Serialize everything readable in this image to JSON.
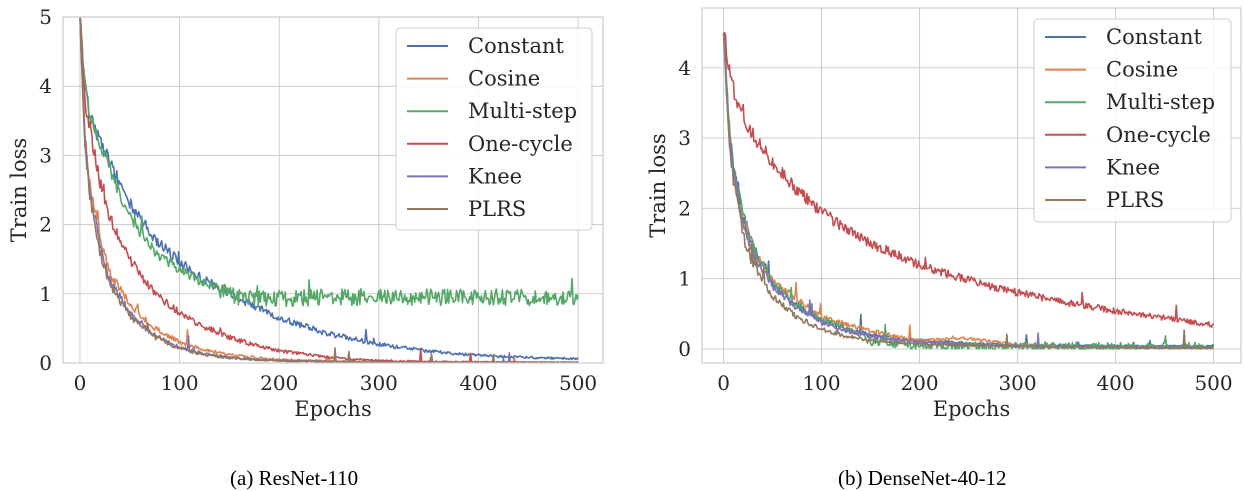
{
  "colors": {
    "Constant": "#4c72b0",
    "Cosine": "#dd8452",
    "Multi-step": "#55a868",
    "One-cycle": "#c44e52",
    "Knee": "#8172b3",
    "PLRS": "#937860",
    "grid": "#cccccc",
    "frame": "#cccccc"
  },
  "chart_data": [
    {
      "type": "line",
      "caption": "(a) ResNet-110",
      "xlabel": "Epochs",
      "ylabel": "Train loss",
      "xlim": [
        -17,
        525
      ],
      "ylim": [
        0,
        5
      ],
      "xticks": [
        0,
        100,
        200,
        300,
        400,
        500
      ],
      "yticks": [
        0,
        1,
        2,
        3,
        4,
        5
      ],
      "grid": true,
      "legend": "top-right",
      "series": [
        {
          "name": "Constant",
          "x": [
            0,
            5,
            10,
            20,
            30,
            50,
            75,
            100,
            125,
            150,
            175,
            200,
            250,
            300,
            350,
            400,
            450,
            500
          ],
          "y": [
            5.0,
            4.0,
            3.6,
            3.2,
            2.9,
            2.3,
            1.8,
            1.45,
            1.2,
            1.0,
            0.82,
            0.65,
            0.42,
            0.27,
            0.17,
            0.11,
            0.08,
            0.06
          ]
        },
        {
          "name": "Cosine",
          "x": [
            0,
            5,
            10,
            20,
            30,
            50,
            75,
            100,
            125,
            150,
            175,
            200,
            250,
            300,
            350,
            400,
            450,
            500
          ],
          "y": [
            5.0,
            3.3,
            2.6,
            1.8,
            1.3,
            0.85,
            0.5,
            0.3,
            0.19,
            0.12,
            0.08,
            0.05,
            0.03,
            0.015,
            0.01,
            0.008,
            0.007,
            0.006
          ]
        },
        {
          "name": "Multi-step",
          "x": [
            0,
            5,
            10,
            20,
            30,
            50,
            75,
            100,
            125,
            150,
            160,
            200,
            250,
            300,
            350,
            400,
            450,
            500
          ],
          "y": [
            5.0,
            4.0,
            3.6,
            3.2,
            2.8,
            2.1,
            1.6,
            1.35,
            1.15,
            1.0,
            0.95,
            0.93,
            0.95,
            0.95,
            0.95,
            0.95,
            0.95,
            0.95
          ]
        },
        {
          "name": "One-cycle",
          "x": [
            0,
            5,
            10,
            20,
            30,
            50,
            75,
            100,
            125,
            150,
            175,
            200,
            250,
            300,
            350,
            400,
            450,
            500
          ],
          "y": [
            5.0,
            3.8,
            3.4,
            2.6,
            2.1,
            1.5,
            1.0,
            0.72,
            0.52,
            0.37,
            0.26,
            0.18,
            0.08,
            0.035,
            0.02,
            0.012,
            0.008,
            0.006
          ]
        },
        {
          "name": "Knee",
          "x": [
            0,
            5,
            10,
            20,
            30,
            50,
            75,
            100,
            125,
            150,
            175,
            200,
            250,
            300,
            350,
            400,
            450,
            500
          ],
          "y": [
            5.0,
            3.3,
            2.5,
            1.7,
            1.2,
            0.72,
            0.4,
            0.22,
            0.13,
            0.08,
            0.05,
            0.035,
            0.02,
            0.012,
            0.008,
            0.006,
            0.005,
            0.004
          ]
        },
        {
          "name": "PLRS",
          "x": [
            0,
            5,
            10,
            20,
            30,
            50,
            75,
            100,
            125,
            150,
            175,
            200,
            250,
            300,
            350,
            400,
            450,
            500
          ],
          "y": [
            5.0,
            3.2,
            2.4,
            1.6,
            1.15,
            0.68,
            0.38,
            0.21,
            0.12,
            0.075,
            0.048,
            0.032,
            0.018,
            0.011,
            0.008,
            0.006,
            0.005,
            0.004
          ]
        }
      ]
    },
    {
      "type": "line",
      "caption": "(b) DenseNet-40-12",
      "xlabel": "Epochs",
      "ylabel": "Train loss",
      "xlim": [
        -22,
        528
      ],
      "ylim": [
        -0.2,
        4.85
      ],
      "xticks": [
        0,
        100,
        200,
        300,
        400,
        500
      ],
      "yticks": [
        0,
        1,
        2,
        3,
        4
      ],
      "grid": true,
      "legend": "top-right",
      "series": [
        {
          "name": "Constant",
          "x": [
            0,
            5,
            10,
            20,
            30,
            50,
            75,
            100,
            125,
            150,
            175,
            200,
            250,
            300,
            350,
            400,
            450,
            500
          ],
          "y": [
            4.6,
            3.3,
            2.6,
            1.9,
            1.45,
            0.95,
            0.6,
            0.4,
            0.28,
            0.2,
            0.15,
            0.12,
            0.08,
            0.06,
            0.05,
            0.045,
            0.04,
            0.04
          ]
        },
        {
          "name": "Cosine",
          "x": [
            0,
            5,
            10,
            20,
            30,
            50,
            75,
            100,
            125,
            150,
            175,
            200,
            250,
            300,
            350,
            400,
            450,
            500
          ],
          "y": [
            4.6,
            3.2,
            2.5,
            1.8,
            1.4,
            1.0,
            0.7,
            0.45,
            0.35,
            0.26,
            0.18,
            0.12,
            0.15,
            0.06,
            0.03,
            0.02,
            0.015,
            0.01
          ]
        },
        {
          "name": "Multi-step",
          "x": [
            0,
            5,
            10,
            20,
            30,
            50,
            75,
            100,
            125,
            150,
            175,
            200,
            250,
            300,
            350,
            400,
            450,
            500
          ],
          "y": [
            4.6,
            3.3,
            2.6,
            1.9,
            1.45,
            0.95,
            0.62,
            0.42,
            0.3,
            0.1,
            0.07,
            0.05,
            0.04,
            0.03,
            0.03,
            0.025,
            0.02,
            0.02
          ]
        },
        {
          "name": "One-cycle",
          "x": [
            0,
            5,
            10,
            20,
            30,
            50,
            75,
            100,
            125,
            150,
            175,
            200,
            250,
            300,
            350,
            400,
            450,
            500
          ],
          "y": [
            4.6,
            4.0,
            3.7,
            3.3,
            3.05,
            2.65,
            2.25,
            1.95,
            1.7,
            1.5,
            1.35,
            1.2,
            0.98,
            0.8,
            0.66,
            0.54,
            0.44,
            0.34
          ]
        },
        {
          "name": "Knee",
          "x": [
            0,
            5,
            10,
            20,
            30,
            50,
            75,
            100,
            125,
            150,
            175,
            200,
            250,
            300,
            350,
            400,
            450,
            500
          ],
          "y": [
            4.6,
            3.2,
            2.5,
            1.8,
            1.35,
            0.9,
            0.58,
            0.38,
            0.26,
            0.18,
            0.13,
            0.1,
            0.06,
            0.04,
            0.03,
            0.025,
            0.02,
            0.02
          ]
        },
        {
          "name": "PLRS",
          "x": [
            0,
            5,
            10,
            20,
            30,
            50,
            75,
            100,
            125,
            150,
            175,
            200,
            250,
            300,
            350,
            400,
            450,
            500
          ],
          "y": [
            4.6,
            3.1,
            2.4,
            1.6,
            1.2,
            0.75,
            0.45,
            0.28,
            0.18,
            0.12,
            0.09,
            0.07,
            0.05,
            0.035,
            0.03,
            0.025,
            0.02,
            0.02
          ]
        }
      ]
    }
  ]
}
